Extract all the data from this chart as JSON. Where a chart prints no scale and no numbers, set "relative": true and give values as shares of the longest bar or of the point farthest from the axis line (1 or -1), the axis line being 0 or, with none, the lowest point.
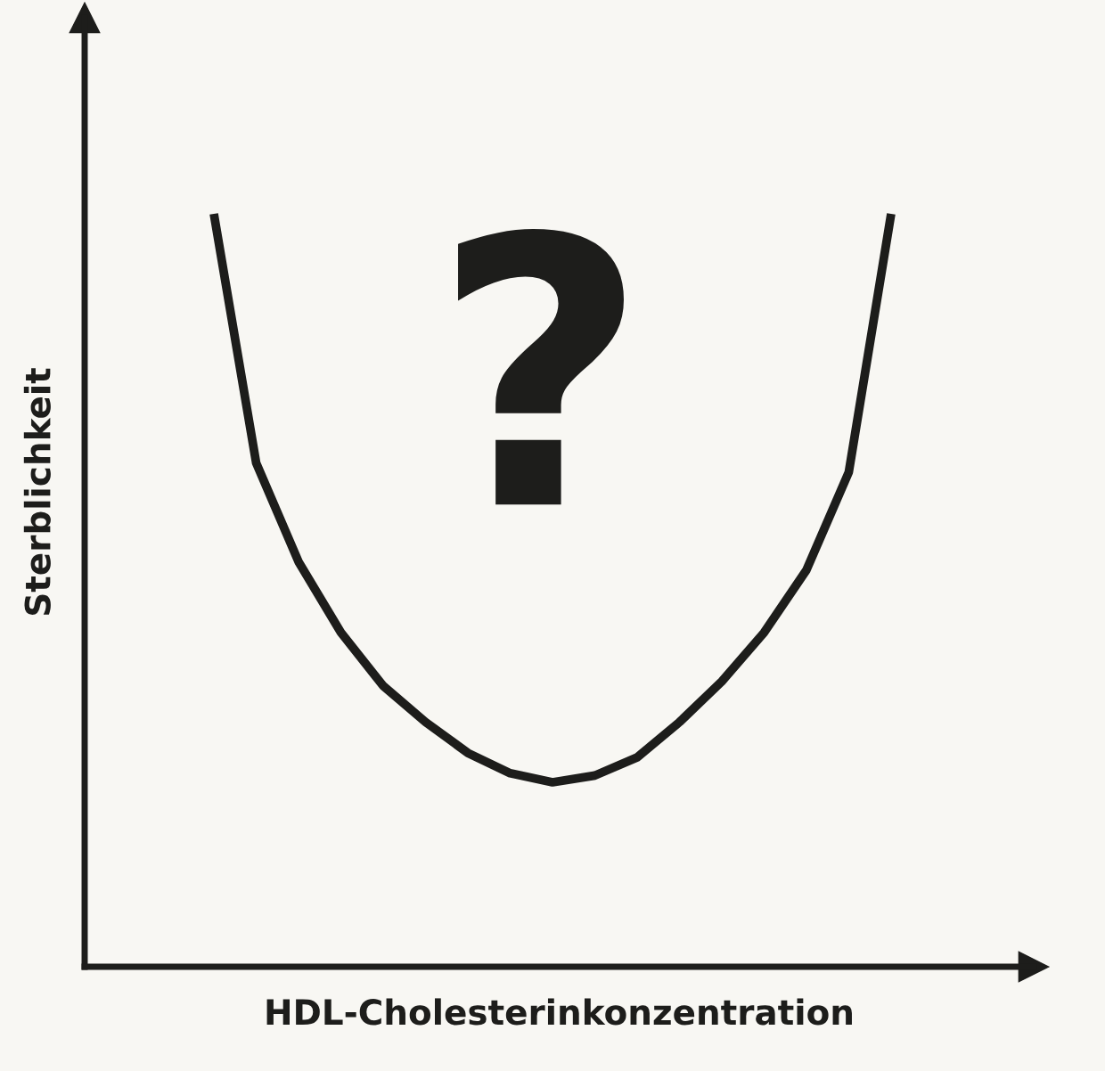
{
  "chart_data": {
    "type": "line",
    "relative": true,
    "xlabel": "HDL-Cholesterinkonzentration",
    "ylabel": "Sterblichkeit",
    "annotations": [
      "?"
    ],
    "categories": [
      null,
      null,
      null,
      null,
      null,
      null,
      null,
      null,
      null,
      null,
      null,
      null,
      null,
      null,
      null,
      null,
      null
    ],
    "series": [
      {
        "color": "#1d1d1b",
        "values": [
          1.0,
          0.669,
          0.538,
          0.444,
          0.373,
          0.325,
          0.284,
          0.257,
          0.245,
          0.254,
          0.278,
          0.325,
          0.379,
          0.444,
          0.527,
          0.657,
          1.0
        ]
      }
    ],
    "grid": false,
    "legend": false,
    "marker": "none",
    "line_style": "solid"
  }
}
